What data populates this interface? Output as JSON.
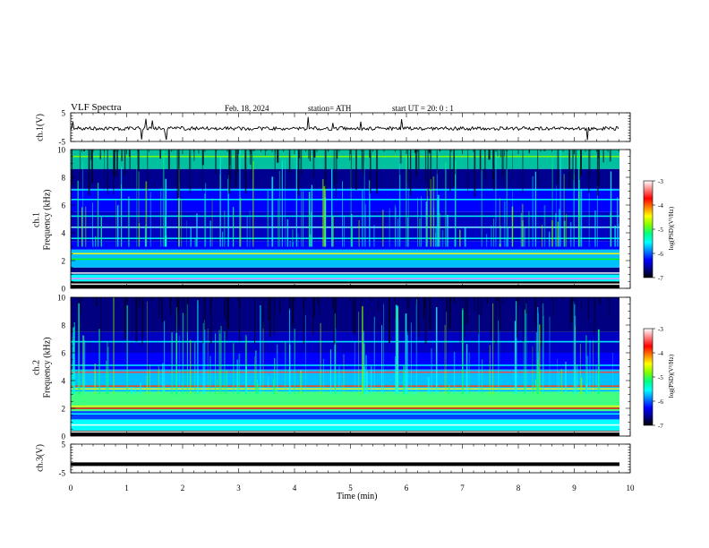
{
  "header": {
    "title": "VLF  Spectra",
    "date": "Feb. 18, 2024",
    "station": "station= ATH",
    "start_ut": "start  UT  =    20: 0   : 1"
  },
  "colors": {
    "background": "#ffffff",
    "trace": "#000000",
    "colormap": [
      "#000000",
      "#00008b",
      "#0000ff",
      "#0080ff",
      "#00ffff",
      "#00ff80",
      "#80ff00",
      "#ffff00",
      "#ff8000",
      "#ff0000",
      "#ff8080",
      "#ffffff"
    ]
  },
  "chart_data": [
    {
      "type": "line",
      "panel": "ch1-waveform",
      "ylabel": "ch.1(V)",
      "ylim": [
        -5,
        5
      ],
      "yticks": [
        "5",
        "-5"
      ],
      "series": [
        {
          "values_approx": "noise around 0 V, amplitude ~0.5 V, occasional spikes"
        }
      ]
    },
    {
      "type": "heatmap",
      "panel": "ch1-spectrogram",
      "ylabel": "ch.1\nFrequency (kHz)",
      "ylabel_line1": "ch.1",
      "ylabel_line2": "Frequency (kHz)",
      "ylim": [
        0,
        10
      ],
      "yticks": [
        "0",
        "2",
        "4",
        "6",
        "8",
        "10"
      ],
      "colorbar": {
        "label": "log(PSD)(V²/Hz)",
        "range": [
          -7,
          -3
        ],
        "ticks": [
          "-3",
          "-4",
          "-5",
          "-6",
          "-7"
        ]
      }
    },
    {
      "type": "heatmap",
      "panel": "ch2-spectrogram",
      "ylabel_line1": "ch.2",
      "ylabel_line2": "Frequency (kHz)",
      "ylim": [
        0,
        10
      ],
      "yticks": [
        "0",
        "2",
        "4",
        "6",
        "8",
        "10"
      ],
      "colorbar": {
        "label": "log(PSD)(V²/Hz)",
        "range": [
          -7,
          -3
        ],
        "ticks": [
          "-3",
          "-4",
          "-5",
          "-6",
          "-7"
        ]
      }
    },
    {
      "type": "line",
      "panel": "ch3-waveform",
      "ylabel": "ch.3(V)",
      "ylim": [
        -5,
        5
      ],
      "yticks": [
        "5",
        "-5"
      ],
      "series": [
        {
          "values_approx": "flat at about -2 V"
        }
      ]
    }
  ],
  "xaxis": {
    "label": "Time  (min)",
    "range": [
      0,
      10
    ],
    "ticks": [
      "0",
      "1",
      "2",
      "3",
      "4",
      "5",
      "6",
      "7",
      "8",
      "9",
      "10"
    ]
  }
}
